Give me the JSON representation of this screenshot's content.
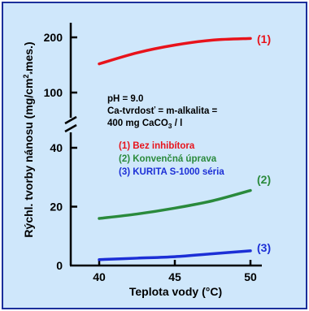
{
  "chart_data": {
    "type": "line",
    "xlabel": "Teplota vody (°C)",
    "ylabel_prefix": "Rýchl. tvorby nánosu (mg/cm",
    "ylabel_sup": "2",
    "ylabel_sub": "*",
    "ylabel_suffix": "mes.)",
    "x_ticks": [
      "40",
      "45",
      "50"
    ],
    "xlim": [
      38,
      52
    ],
    "y_upper_ticks": [
      "100",
      "200"
    ],
    "y_lower_ticks": [
      "0",
      "20",
      "40"
    ],
    "ylim_lower": [
      0,
      45
    ],
    "ylim_upper": [
      75,
      210
    ],
    "axis_break": true,
    "notes": {
      "line1": "pH = 9.0",
      "line2": "Ca-tvrdosť = m-alkalita =",
      "line3_main": "400 mg CaCO",
      "line3_sub": "3",
      "line3_tail": " / l"
    },
    "series": [
      {
        "name": "Bez inhibítora",
        "tag": "(1)",
        "legend": "(1)  Bez inhibítora",
        "color": "#e8131b",
        "x": [
          40,
          42.5,
          45,
          47.5,
          50
        ],
        "y": [
          152,
          172,
          186,
          195,
          198
        ]
      },
      {
        "name": "Konvenčná úprava",
        "tag": "(2)",
        "legend": "(2)  Konvenčná úprava",
        "color": "#2a8a3c",
        "x": [
          40,
          42.5,
          45,
          47.5,
          50
        ],
        "y": [
          16,
          17.5,
          19.5,
          22,
          25.5
        ]
      },
      {
        "name": "KURITA S-1000 séria",
        "tag": "(3)",
        "legend": "(3)  KURITA S-1000 séria",
        "color": "#1c2fd6",
        "x": [
          40,
          42.5,
          45,
          47.5,
          50
        ],
        "y": [
          2,
          2.5,
          3,
          4,
          5
        ]
      }
    ]
  }
}
